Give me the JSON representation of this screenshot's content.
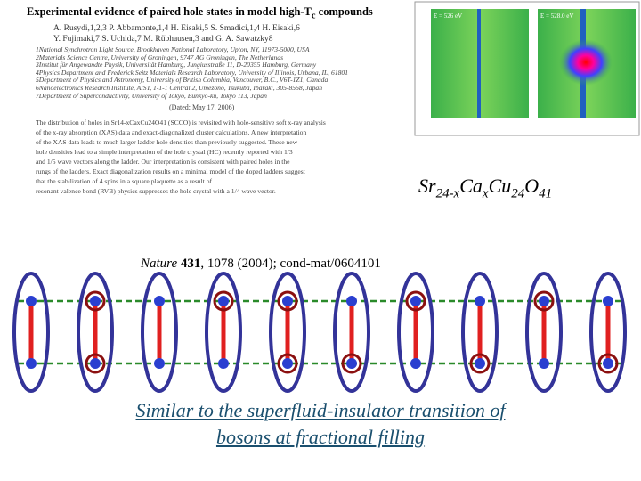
{
  "paper": {
    "title": [
      "Experimental evidence of paired hole states in model high-T",
      "c",
      " compounds"
    ],
    "authors": [
      "A. Rusydi,1,2,3 P. Abbamonte,1,4 H. Eisaki,5 S. Smadici,1,4 H. Eisaki,6",
      "Y. Fujimaki,7 S. Uchida,7 M. Rübhausen,3 and G. A. Sawatzky8"
    ],
    "affiliations": [
      "1National Synchrotron Light Source, Brookhaven National Laboratory, Upton, NY, 11973-5000, USA",
      "2Materials Science Centre, University of Groningen, 9747 AG Groningen, The Netherlands",
      "3Institut für Angewandte Physik, Universität Hamburg, Jungiusstraße 11, D-20355 Hamburg, Germany",
      "4Physics Department and Frederick Seitz Materials Research Laboratory, University of Illinois, Urbana, IL, 61801",
      "5Department of Physics and Astronomy, University of British Columbia, Vancouver, B.C., V6T-1Z1, Canada",
      "6Nanoelectronics Research Institute, AIST, 1-1-1 Central 2, Umezono, Tsukuba, Ibaraki, 305-8568, Japan",
      "7Department of Superconductivity, University of Tokyo, Bunkyo-ku, Tokyo 113, Japan"
    ],
    "dated": "(Dated: May 17, 2006)",
    "abstract": [
      "The distribution of holes in Sr14-xCaxCu24O41 (SCCO) is revisited with hole-sensitive soft x-ray analysis",
      "of the x-ray absorption (XAS) data and exact-diagonalized cluster calculations. A new interpretation",
      "of the XAS data leads to much larger ladder hole densities than previously suggested. These new",
      "hole densities lead to a simple interpretation of the hole crystal (HC) recently reported with 1/3",
      "and 1/5 wave vectors along the ladder. Our interpretation is consistent with paired holes in the",
      "rungs of the ladders. Exact diagonalization results on a minimal model of the doped ladders suggest",
      "that the stabilization of 4 spins in a square plaquette as a result of",
      "resonant valence bond (RVB) physics suppresses the hole crystal with a 1/4 wave vector."
    ]
  },
  "figure": {
    "panels": [
      {
        "label": "E = 526 eV"
      },
      {
        "label": "E = 528.0 eV"
      }
    ]
  },
  "formula": [
    "Sr",
    "24-x",
    "Ca",
    "x",
    "Cu",
    "24",
    "O",
    "41"
  ],
  "citation": [
    "Nature",
    " ",
    "431",
    ", 1078 (2004); cond-mat/0604101"
  ],
  "caption": [
    "Similar to the superfluid-insulator transition of",
    "bosons at fractional filling"
  ]
}
